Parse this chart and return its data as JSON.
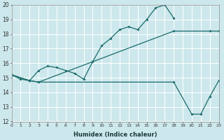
{
  "xlabel": "Humidex (Indice chaleur)",
  "bg_color": "#cde8ec",
  "grid_color": "#ffffff",
  "line_color": "#1a6b6b",
  "x_min": 0,
  "x_max": 23,
  "y_min": 12,
  "y_max": 20,
  "line1_x": [
    0,
    1,
    2,
    3,
    4,
    5,
    6,
    7,
    8,
    9,
    10,
    11,
    12,
    13,
    14,
    15,
    16,
    17,
    18
  ],
  "line1_y": [
    15.2,
    14.9,
    14.8,
    15.5,
    15.8,
    15.7,
    15.5,
    15.3,
    14.9,
    16.1,
    17.2,
    17.7,
    18.3,
    18.5,
    18.3,
    19.0,
    19.8,
    20.0,
    19.1
  ],
  "line2_x": [
    0,
    2,
    3,
    18,
    22,
    23
  ],
  "line2_y": [
    15.2,
    14.8,
    14.7,
    18.2,
    18.2,
    18.2
  ],
  "line3_x": [
    0,
    2,
    3,
    18,
    20,
    21,
    22,
    23
  ],
  "line3_y": [
    15.2,
    14.8,
    14.7,
    14.7,
    12.5,
    12.5,
    13.7,
    14.8
  ]
}
